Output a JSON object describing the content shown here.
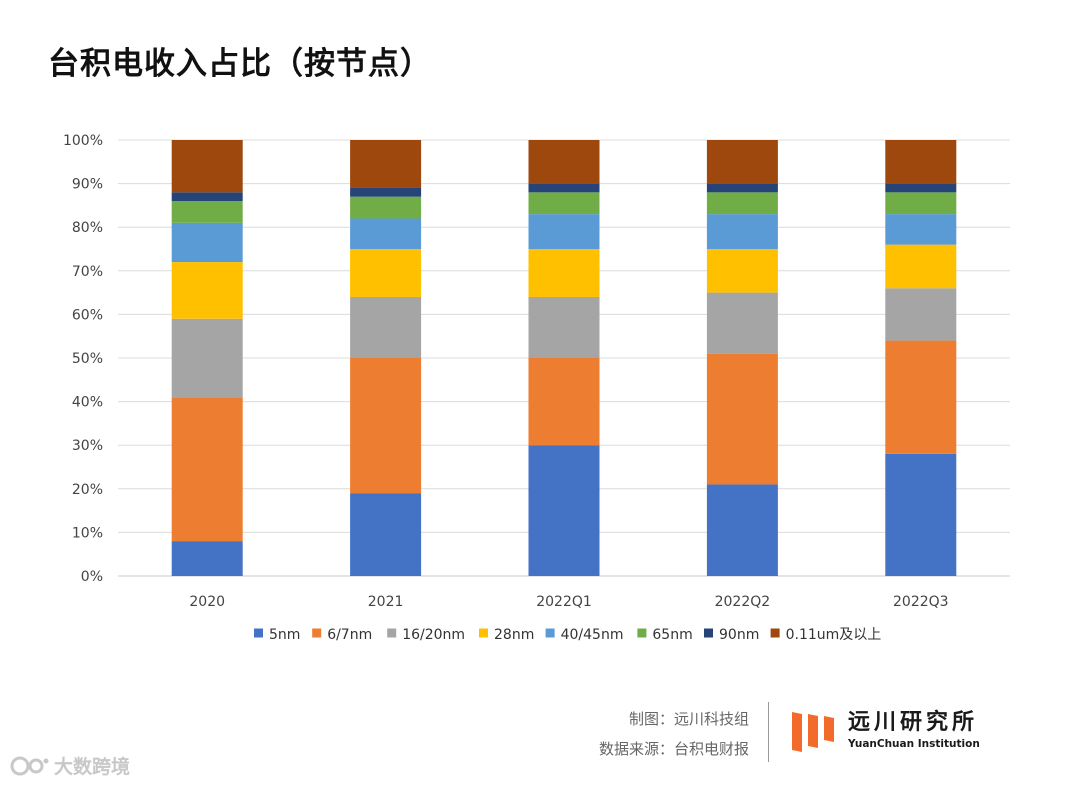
{
  "title": "台积电收入占比（按节点）",
  "chart_data": {
    "type": "bar",
    "stacked": true,
    "categories": [
      "2020",
      "2021",
      "2022Q1",
      "2022Q2",
      "2022Q3"
    ],
    "ylim": [
      0,
      100
    ],
    "y_ticks": [
      "0%",
      "10%",
      "20%",
      "30%",
      "40%",
      "50%",
      "60%",
      "70%",
      "80%",
      "90%",
      "100%"
    ],
    "y_tick_values": [
      0,
      10,
      20,
      30,
      40,
      50,
      60,
      70,
      80,
      90,
      100
    ],
    "grid": true,
    "legend_position": "bottom",
    "series": [
      {
        "name": "5nm",
        "color": "#4472C4",
        "values": [
          8,
          19,
          30,
          21,
          28
        ]
      },
      {
        "name": "6/7nm",
        "color": "#ED7D31",
        "values": [
          33,
          31,
          20,
          30,
          26
        ]
      },
      {
        "name": "16/20nm",
        "color": "#A5A5A5",
        "values": [
          18,
          14,
          14,
          14,
          12
        ]
      },
      {
        "name": "28nm",
        "color": "#FFC000",
        "values": [
          13,
          11,
          11,
          10,
          10
        ]
      },
      {
        "name": "40/45nm",
        "color": "#5B9BD5",
        "values": [
          9,
          7,
          8,
          8,
          7
        ]
      },
      {
        "name": "65nm",
        "color": "#70AD47",
        "values": [
          5,
          5,
          5,
          5,
          5
        ]
      },
      {
        "name": "90nm",
        "color": "#264478",
        "values": [
          2,
          2,
          2,
          2,
          2
        ]
      },
      {
        "name": "0.11um及以上",
        "color": "#9E480E",
        "values": [
          12,
          11,
          10,
          10,
          10
        ]
      }
    ]
  },
  "footer": {
    "credit_chart": "制图：远川科技组",
    "credit_source": "数据来源：台积电财报",
    "brand_cn": "远川研究所",
    "brand_en": "YuanChuan Institution",
    "brand_color": "#F26B2A",
    "watermark_text": "大数跨境"
  }
}
